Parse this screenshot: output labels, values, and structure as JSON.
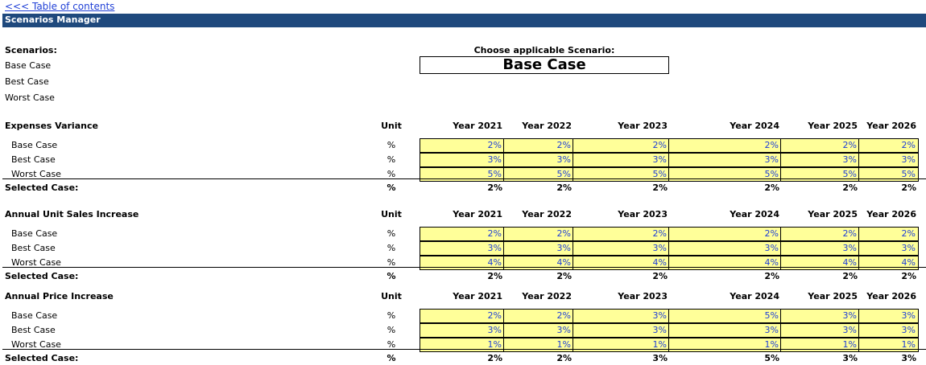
{
  "toc_link": "<<< Table of contents",
  "banner_title": "Scenarios Manager",
  "scenarios_heading": "Scenarios:",
  "scenarios": [
    "Base Case",
    "Best Case",
    "Worst Case"
  ],
  "choose_label": "Choose applicable Scenario:",
  "selected_scenario": "Base Case",
  "unit_header": "Unit",
  "case_labels": [
    "Base Case",
    "Best Case",
    "Worst Case"
  ],
  "selected_label": "Selected Case:",
  "years": [
    "Year 2021",
    "Year 2022",
    "Year 2023",
    "Year 2024",
    "Year 2025",
    "Year 2026"
  ],
  "sections": [
    {
      "title": "Expenses Variance",
      "unit": "%",
      "rows": [
        [
          "2%",
          "2%",
          "2%",
          "2%",
          "2%",
          "2%"
        ],
        [
          "3%",
          "3%",
          "3%",
          "3%",
          "3%",
          "3%"
        ],
        [
          "5%",
          "5%",
          "5%",
          "5%",
          "5%",
          "5%"
        ]
      ],
      "selected": [
        "2%",
        "2%",
        "2%",
        "2%",
        "2%",
        "2%"
      ]
    },
    {
      "title": "Annual Unit Sales Increase",
      "unit": "%",
      "rows": [
        [
          "2%",
          "2%",
          "2%",
          "2%",
          "2%",
          "2%"
        ],
        [
          "3%",
          "3%",
          "3%",
          "3%",
          "3%",
          "3%"
        ],
        [
          "4%",
          "4%",
          "4%",
          "4%",
          "4%",
          "4%"
        ]
      ],
      "selected": [
        "2%",
        "2%",
        "2%",
        "2%",
        "2%",
        "2%"
      ]
    },
    {
      "title": "Annual Price Increase",
      "unit": "%",
      "rows": [
        [
          "2%",
          "2%",
          "3%",
          "5%",
          "3%",
          "3%"
        ],
        [
          "3%",
          "3%",
          "3%",
          "3%",
          "3%",
          "3%"
        ],
        [
          "1%",
          "1%",
          "1%",
          "1%",
          "1%",
          "1%"
        ]
      ],
      "selected": [
        "2%",
        "2%",
        "3%",
        "5%",
        "3%",
        "3%"
      ]
    }
  ]
}
